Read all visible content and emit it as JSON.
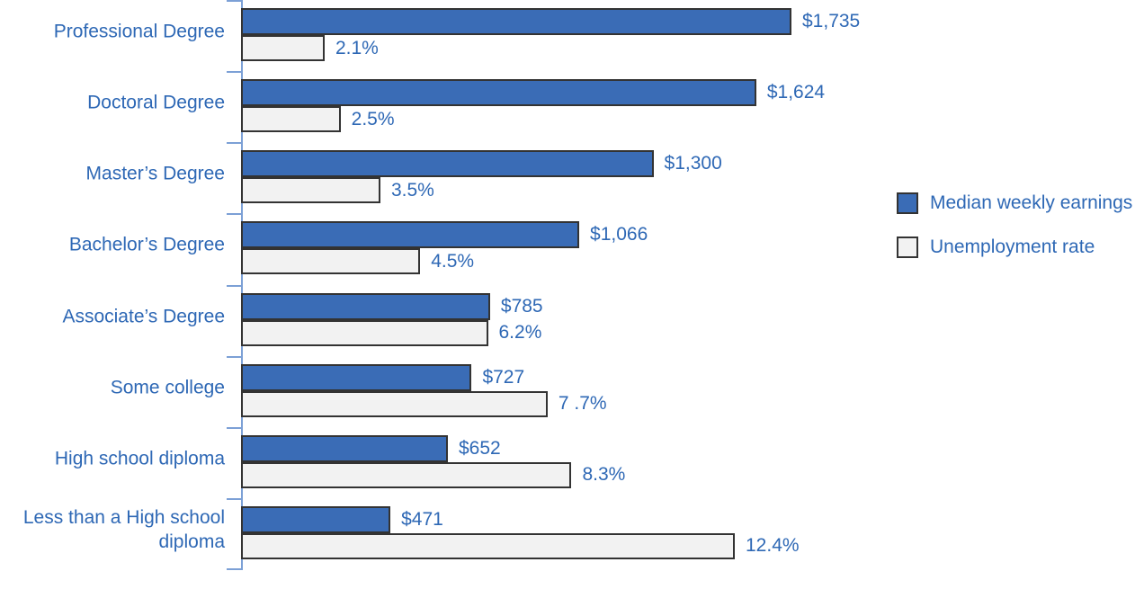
{
  "chart_data": {
    "type": "bar",
    "orientation": "horizontal",
    "title": "",
    "categories": [
      "Professional Degree",
      "Doctoral Degree",
      "Master’s Degree",
      "Bachelor’s Degree",
      "Associate’s Degree",
      "Some college",
      "High school diploma",
      "Less than a High school diploma"
    ],
    "series": [
      {
        "name": "Median weekly earnings",
        "values": [
          1735,
          1624,
          1300,
          1066,
          785,
          727,
          652,
          471
        ],
        "labels": [
          "$1,735",
          "$1,624",
          "$1,300",
          "$1,066",
          "$785",
          "$727",
          "$652",
          "$471"
        ],
        "color": "#3A6CB6"
      },
      {
        "name": "Unemployment rate",
        "values": [
          2.1,
          2.5,
          3.5,
          4.5,
          6.2,
          7.7,
          8.3,
          12.4
        ],
        "labels": [
          "2.1%",
          "2.5%",
          "3.5%",
          "4.5%",
          "6.2%",
          "7 .7%",
          "8.3%",
          "12.4%"
        ],
        "color": "#F2F2F2"
      }
    ],
    "legend_position": "right",
    "grid": false,
    "colors": {
      "text": "#2E68B5",
      "axis": "#7CA0D6",
      "bar_border": "#333333"
    }
  }
}
